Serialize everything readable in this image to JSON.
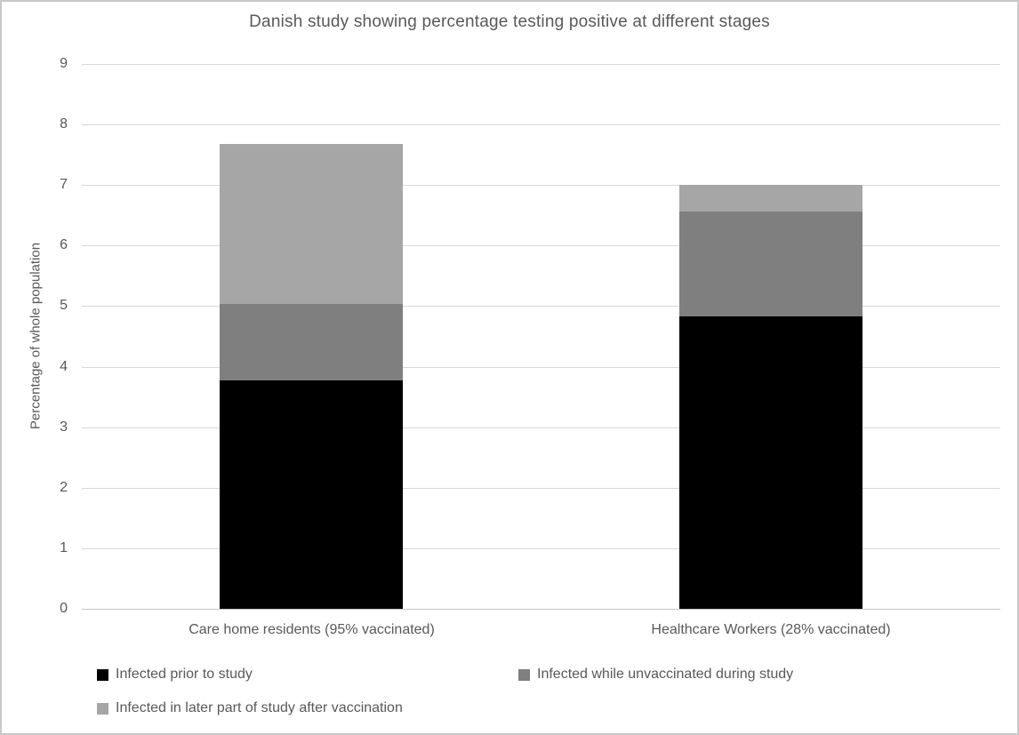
{
  "chart_data": {
    "type": "bar",
    "stacked": true,
    "title": "Danish study showing percentage testing positive at different stages",
    "ylabel": "Percentage of whole population",
    "categories": [
      "Care home residents (95% vaccinated)",
      "Healthcare Workers (28% vaccinated)"
    ],
    "series": [
      {
        "name": "Infected prior to study",
        "color": "#000000",
        "values": [
          3.78,
          4.83
        ]
      },
      {
        "name": "Infected while unvaccinated during study",
        "color": "#7f7f7f",
        "values": [
          1.25,
          1.73
        ]
      },
      {
        "name": "Infected in later part of study after vaccination",
        "color": "#a6a6a6",
        "values": [
          2.65,
          0.44
        ]
      }
    ],
    "totals": [
      7.68,
      7.0
    ],
    "ylim": [
      0,
      9
    ],
    "ytick_step": 1,
    "ytick_labels": [
      "0",
      "1",
      "2",
      "3",
      "4",
      "5",
      "6",
      "7",
      "8",
      "9"
    ],
    "grid": true,
    "legend_position": "bottom",
    "colors": {
      "grid": "#d9d9d9",
      "zero_axis": "#c6c6c6",
      "text": "#595959",
      "background": "#ffffff",
      "frame_border": "#c9c9c9"
    }
  }
}
